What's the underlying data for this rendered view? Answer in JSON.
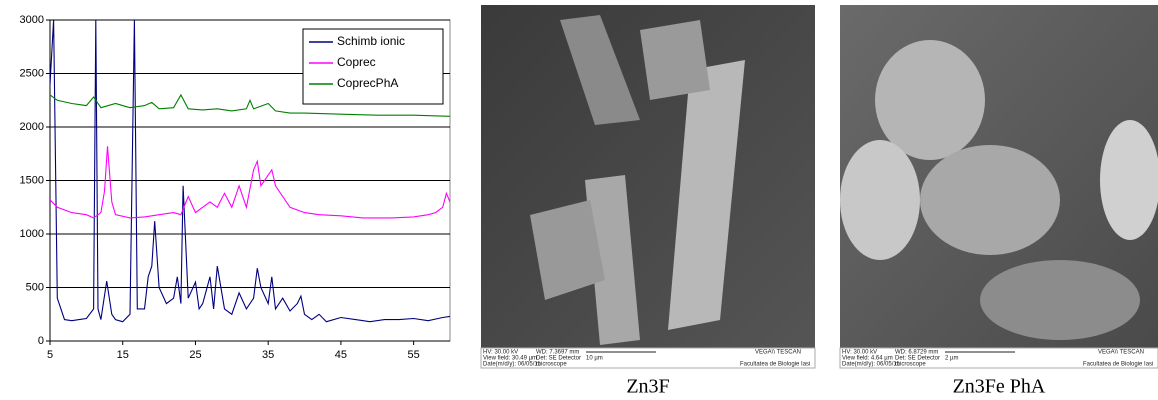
{
  "chart_data": {
    "type": "line",
    "xlim": [
      5,
      60
    ],
    "xticks": [
      5,
      15,
      25,
      35,
      45,
      55
    ],
    "ylim": [
      0,
      3000
    ],
    "yticks": [
      0,
      500,
      1000,
      1500,
      2000,
      2500,
      3000
    ],
    "grid": true,
    "legend": "upper right",
    "series": [
      {
        "name": "Schimb ionic",
        "color": "#000080",
        "x": [
          5,
          5.5,
          6,
          7,
          8,
          9,
          10,
          11,
          11.3,
          11.6,
          12,
          12.8,
          13.5,
          14,
          15,
          16,
          16.6,
          17,
          18,
          18.5,
          19,
          19.4,
          20,
          21,
          22,
          22.5,
          23,
          23.3,
          24,
          25,
          25.5,
          26,
          27,
          27.5,
          28,
          29,
          30,
          31,
          32,
          33,
          33.5,
          34,
          35,
          35.5,
          36,
          37,
          38,
          39,
          39.5,
          40,
          41,
          42,
          43,
          45,
          47,
          49,
          51,
          53,
          55,
          57,
          59,
          60
        ],
        "values": [
          2400,
          3000,
          400,
          200,
          190,
          200,
          210,
          300,
          3000,
          300,
          200,
          560,
          250,
          200,
          180,
          250,
          3000,
          300,
          300,
          600,
          700,
          1120,
          500,
          350,
          400,
          600,
          350,
          1450,
          400,
          550,
          300,
          350,
          600,
          300,
          700,
          300,
          250,
          450,
          300,
          400,
          680,
          500,
          350,
          600,
          300,
          400,
          280,
          350,
          420,
          250,
          200,
          250,
          180,
          220,
          200,
          180,
          200,
          200,
          210,
          190,
          220,
          230
        ]
      },
      {
        "name": "Coprec",
        "color": "#ff00ff",
        "x": [
          5,
          6,
          8,
          10,
          11,
          12,
          12.5,
          12.9,
          13.5,
          14,
          16,
          18,
          20,
          22,
          23,
          24,
          25,
          26,
          27,
          28,
          29,
          30,
          31,
          32,
          33,
          33.5,
          34,
          35,
          35.5,
          36,
          37,
          38,
          40,
          42,
          45,
          48,
          50,
          52,
          55,
          57,
          58,
          59,
          59.5,
          60
        ],
        "values": [
          1320,
          1250,
          1200,
          1180,
          1150,
          1200,
          1400,
          1820,
          1300,
          1180,
          1150,
          1160,
          1180,
          1200,
          1180,
          1350,
          1200,
          1250,
          1300,
          1250,
          1380,
          1250,
          1450,
          1250,
          1600,
          1680,
          1450,
          1550,
          1600,
          1450,
          1350,
          1250,
          1200,
          1180,
          1170,
          1150,
          1150,
          1150,
          1160,
          1180,
          1200,
          1250,
          1380,
          1300
        ]
      },
      {
        "name": "CoprecPhA",
        "color": "#008000",
        "x": [
          5,
          6,
          8,
          10,
          11,
          12,
          14,
          16,
          18,
          19,
          20,
          22,
          23,
          24,
          26,
          28,
          30,
          32,
          32.5,
          33,
          35,
          36,
          38,
          40,
          45,
          50,
          55,
          60
        ],
        "values": [
          2300,
          2250,
          2220,
          2200,
          2280,
          2180,
          2220,
          2180,
          2200,
          2230,
          2170,
          2180,
          2300,
          2170,
          2160,
          2170,
          2150,
          2170,
          2250,
          2170,
          2220,
          2150,
          2130,
          2130,
          2120,
          2110,
          2110,
          2100
        ]
      }
    ]
  },
  "images": [
    {
      "info": [
        "HV: 30.00 kV",
        "View field: 30.49 µm",
        "Date(m/d/y): 06/05/11",
        "WD: 7.3697 mm",
        "Det: SE Detector",
        "microscope",
        "10 µm",
        "VEGA\\\\ TESCAN",
        "Facultatea de Biologie Iasi"
      ],
      "caption": "Zn3F"
    },
    {
      "info": [
        "HV: 30.00 kV",
        "View field: 4.64 µm",
        "Date(m/d/y): 06/05/11",
        "WD: 6.8729 mm",
        "Det: SE Detector",
        "microscope",
        "2 µm",
        "VEGA\\\\ TESCAN",
        "Facultatea de Biologie Iasi"
      ],
      "caption": "Zn3Fe  PhA"
    }
  ]
}
